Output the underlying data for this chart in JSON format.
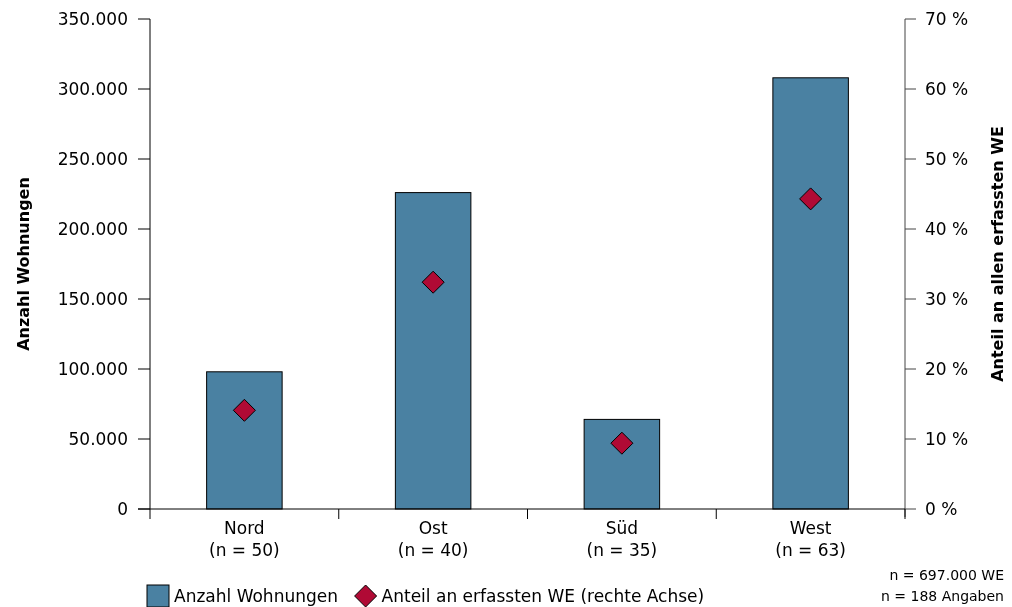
{
  "chart_data": {
    "type": "bar",
    "ylabel": "Anzahl Wohnungen",
    "y2label": "Anteil an allen erfassten WE",
    "categories": [
      "Nord\n(n = 50)",
      "Ost\n(n = 40)",
      "Süd\n(n = 35)",
      "West\n(n = 63)"
    ],
    "series": [
      {
        "name": "Anzahl Wohnungen",
        "color": "#4a81a2",
        "values": [
          98000,
          226000,
          64000,
          308000
        ]
      },
      {
        "name": "Anteil an erfassten WE (rechte Achse)",
        "type": "scatter",
        "axis": "y2",
        "marker": "diamond",
        "color": "#b00a35",
        "values": [
          14.1,
          32.4,
          9.4,
          44.3
        ]
      }
    ],
    "ylim": [
      0,
      350000
    ],
    "yticks": [
      {
        "value": 0,
        "label": "0"
      },
      {
        "value": 50000,
        "label": "50.000"
      },
      {
        "value": 100000,
        "label": "100.000"
      },
      {
        "value": 150000,
        "label": "150.000"
      },
      {
        "value": 200000,
        "label": "200.000"
      },
      {
        "value": 250000,
        "label": "250.000"
      },
      {
        "value": 300000,
        "label": "300.000"
      },
      {
        "value": 350000,
        "label": "350.000"
      }
    ],
    "y2lim": [
      0,
      70
    ],
    "y2ticks": [
      {
        "value": 0,
        "label": "0 %"
      },
      {
        "value": 10,
        "label": "10 %"
      },
      {
        "value": 20,
        "label": "20 %"
      },
      {
        "value": 30,
        "label": "30 %"
      },
      {
        "value": 40,
        "label": "40 %"
      },
      {
        "value": 50,
        "label": "50 %"
      },
      {
        "value": 60,
        "label": "60 %"
      },
      {
        "value": 70,
        "label": "70 %"
      }
    ],
    "grid": false,
    "legend": "bottom",
    "annotations": [
      "n = 697.000 WE",
      "n = 188 Angaben"
    ]
  }
}
